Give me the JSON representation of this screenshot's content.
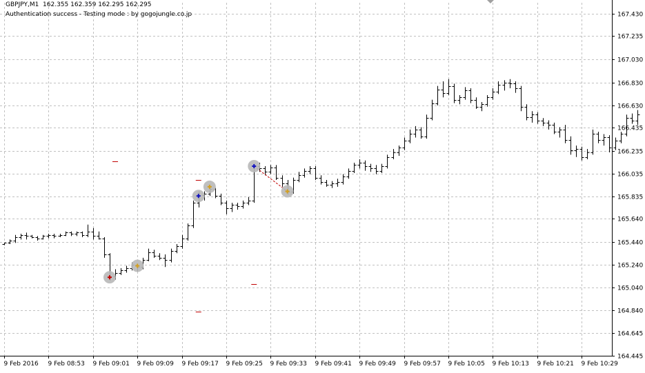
{
  "header": {
    "symbol": "GBPJPY,M1",
    "ohlc": "162.355 162.359 162.295 162.295",
    "status": "Authentication success - Testing mode : by gogojungle.co.jp"
  },
  "colors": {
    "background": "#ffffff",
    "grid": "#c0c0c0",
    "bar": "#000000",
    "marker_circle": "#b8b8b8",
    "buy_marker": "#1010c0",
    "sell_marker": "#c00000",
    "close_marker": "#d4a020",
    "trade_line": "#c00000",
    "level_dash": "#c00000"
  },
  "chart_data": {
    "type": "ohlc",
    "ylim": [
      164.445,
      167.535
    ],
    "y_ticks": [
      "167.430",
      "167.235",
      "167.030",
      "166.830",
      "166.630",
      "166.435",
      "166.235",
      "166.035",
      "165.835",
      "165.640",
      "165.440",
      "165.240",
      "165.040",
      "164.840",
      "164.645",
      "164.445"
    ],
    "x_ticks": [
      "9 Feb 2016",
      "9 Feb 08:53",
      "9 Feb 09:01",
      "9 Feb 09:09",
      "9 Feb 09:17",
      "9 Feb 09:25",
      "9 Feb 09:33",
      "9 Feb 09:41",
      "9 Feb 09:49",
      "9 Feb 09:57",
      "9 Feb 10:05",
      "9 Feb 10:13",
      "9 Feb 10:21",
      "9 Feb 10:29"
    ],
    "x_tick_index": [
      0,
      8,
      16,
      24,
      32,
      40,
      48,
      56,
      64,
      72,
      80,
      88,
      96,
      104
    ],
    "bars": [
      [
        165.42,
        165.43,
        165.41,
        165.43
      ],
      [
        165.43,
        165.46,
        165.42,
        165.45
      ],
      [
        165.45,
        165.5,
        165.43,
        165.48
      ],
      [
        165.48,
        165.51,
        165.46,
        165.5
      ],
      [
        165.5,
        165.52,
        165.46,
        165.49
      ],
      [
        165.49,
        165.5,
        165.47,
        165.48
      ],
      [
        165.48,
        165.49,
        165.45,
        165.47
      ],
      [
        165.47,
        165.5,
        165.46,
        165.49
      ],
      [
        165.49,
        165.51,
        165.47,
        165.5
      ],
      [
        165.5,
        165.51,
        165.47,
        165.49
      ],
      [
        165.49,
        165.51,
        165.48,
        165.5
      ],
      [
        165.5,
        165.53,
        165.49,
        165.52
      ],
      [
        165.52,
        165.53,
        165.49,
        165.51
      ],
      [
        165.51,
        165.53,
        165.49,
        165.52
      ],
      [
        165.52,
        165.53,
        165.48,
        165.5
      ],
      [
        165.5,
        165.59,
        165.48,
        165.53
      ],
      [
        165.53,
        165.56,
        165.46,
        165.49
      ],
      [
        165.49,
        165.53,
        165.46,
        165.47
      ],
      [
        165.47,
        165.48,
        165.3,
        165.33
      ],
      [
        165.33,
        165.34,
        165.1,
        165.14
      ],
      [
        165.14,
        165.2,
        165.11,
        165.17
      ],
      [
        165.17,
        165.21,
        165.15,
        165.19
      ],
      [
        165.19,
        165.23,
        165.17,
        165.21
      ],
      [
        165.21,
        165.26,
        165.19,
        165.24
      ],
      [
        165.24,
        165.25,
        165.18,
        165.22
      ],
      [
        165.22,
        165.3,
        165.2,
        165.28
      ],
      [
        165.28,
        165.38,
        165.27,
        165.35
      ],
      [
        165.35,
        165.37,
        165.3,
        165.32
      ],
      [
        165.32,
        165.34,
        165.28,
        165.3
      ],
      [
        165.3,
        165.33,
        165.22,
        165.28
      ],
      [
        165.28,
        165.38,
        165.26,
        165.36
      ],
      [
        165.36,
        165.42,
        165.34,
        165.4
      ],
      [
        165.4,
        165.5,
        165.38,
        165.47
      ],
      [
        165.47,
        165.6,
        165.45,
        165.58
      ],
      [
        165.58,
        165.8,
        165.56,
        165.78
      ],
      [
        165.78,
        165.88,
        165.74,
        165.85
      ],
      [
        165.85,
        165.88,
        165.8,
        165.86
      ],
      [
        165.86,
        165.93,
        165.84,
        165.9
      ],
      [
        165.9,
        165.91,
        165.82,
        165.84
      ],
      [
        165.84,
        165.86,
        165.76,
        165.78
      ],
      [
        165.78,
        165.8,
        165.68,
        165.73
      ],
      [
        165.73,
        165.78,
        165.7,
        165.76
      ],
      [
        165.76,
        165.78,
        165.72,
        165.75
      ],
      [
        165.75,
        165.8,
        165.73,
        165.78
      ],
      [
        165.78,
        165.83,
        165.76,
        165.8
      ],
      [
        165.8,
        166.12,
        165.78,
        166.1
      ],
      [
        166.1,
        166.13,
        166.05,
        166.08
      ],
      [
        166.08,
        166.1,
        166.02,
        166.05
      ],
      [
        166.05,
        166.11,
        166.03,
        166.09
      ],
      [
        166.09,
        166.11,
        165.98,
        166.0
      ],
      [
        166.0,
        166.02,
        165.92,
        165.95
      ],
      [
        165.95,
        165.98,
        165.85,
        165.88
      ],
      [
        165.88,
        166.0,
        165.86,
        165.98
      ],
      [
        165.98,
        166.05,
        165.96,
        166.02
      ],
      [
        166.02,
        166.08,
        166.0,
        166.06
      ],
      [
        166.06,
        166.1,
        166.03,
        166.08
      ],
      [
        166.08,
        166.1,
        165.98,
        166.0
      ],
      [
        166.0,
        166.02,
        165.94,
        165.96
      ],
      [
        165.96,
        165.98,
        165.92,
        165.94
      ],
      [
        165.94,
        165.97,
        165.91,
        165.95
      ],
      [
        165.95,
        165.99,
        165.92,
        165.96
      ],
      [
        165.96,
        166.03,
        165.94,
        166.01
      ],
      [
        166.01,
        166.08,
        165.99,
        166.06
      ],
      [
        166.06,
        166.13,
        166.04,
        166.11
      ],
      [
        166.11,
        166.16,
        166.08,
        166.13
      ],
      [
        166.13,
        166.15,
        166.06,
        166.1
      ],
      [
        166.1,
        166.12,
        166.05,
        166.08
      ],
      [
        166.08,
        166.11,
        166.03,
        166.06
      ],
      [
        166.06,
        166.12,
        166.04,
        166.1
      ],
      [
        166.1,
        166.2,
        166.08,
        166.18
      ],
      [
        166.18,
        166.25,
        166.16,
        166.22
      ],
      [
        166.22,
        166.28,
        166.19,
        166.26
      ],
      [
        166.26,
        166.35,
        166.24,
        166.32
      ],
      [
        166.32,
        166.42,
        166.3,
        166.38
      ],
      [
        166.38,
        166.45,
        166.35,
        166.42
      ],
      [
        166.42,
        166.44,
        166.34,
        166.36
      ],
      [
        166.36,
        166.55,
        166.34,
        166.52
      ],
      [
        166.52,
        166.68,
        166.5,
        166.65
      ],
      [
        166.65,
        166.8,
        166.63,
        166.77
      ],
      [
        166.77,
        166.84,
        166.7,
        166.74
      ],
      [
        166.74,
        166.86,
        166.72,
        166.8
      ],
      [
        166.8,
        166.82,
        166.65,
        166.68
      ],
      [
        166.68,
        166.72,
        166.64,
        166.7
      ],
      [
        166.7,
        166.79,
        166.68,
        166.76
      ],
      [
        166.76,
        166.78,
        166.65,
        166.68
      ],
      [
        166.68,
        166.7,
        166.6,
        166.62
      ],
      [
        166.62,
        166.66,
        166.58,
        166.64
      ],
      [
        166.64,
        166.72,
        166.62,
        166.7
      ],
      [
        166.7,
        166.78,
        166.68,
        166.75
      ],
      [
        166.75,
        166.84,
        166.73,
        166.81
      ],
      [
        166.81,
        166.85,
        166.76,
        166.83
      ],
      [
        166.83,
        166.86,
        166.78,
        166.82
      ],
      [
        166.82,
        166.84,
        166.74,
        166.78
      ],
      [
        166.78,
        166.8,
        166.58,
        166.62
      ],
      [
        166.62,
        166.64,
        166.5,
        166.53
      ],
      [
        166.53,
        166.58,
        166.48,
        166.55
      ],
      [
        166.55,
        166.57,
        166.47,
        166.5
      ],
      [
        166.5,
        166.52,
        166.45,
        166.48
      ],
      [
        166.48,
        166.5,
        166.42,
        166.46
      ],
      [
        166.46,
        166.48,
        166.38,
        166.4
      ],
      [
        166.4,
        166.44,
        166.35,
        166.42
      ],
      [
        166.42,
        166.46,
        166.3,
        166.33
      ],
      [
        166.33,
        166.36,
        166.2,
        166.24
      ],
      [
        166.24,
        166.28,
        166.18,
        166.25
      ],
      [
        166.25,
        166.27,
        166.15,
        166.18
      ],
      [
        166.18,
        166.25,
        166.16,
        166.22
      ],
      [
        166.22,
        166.42,
        166.2,
        166.38
      ],
      [
        166.38,
        166.4,
        166.3,
        166.33
      ],
      [
        166.33,
        166.38,
        166.28,
        166.35
      ],
      [
        166.35,
        166.37,
        166.22,
        166.26
      ],
      [
        166.26,
        166.35,
        166.24,
        166.32
      ],
      [
        166.32,
        166.4,
        166.3,
        166.38
      ],
      [
        166.38,
        166.55,
        166.36,
        166.52
      ],
      [
        166.52,
        166.56,
        166.47,
        166.5
      ],
      [
        166.5,
        166.59,
        166.46,
        166.55
      ]
    ],
    "trades": [
      {
        "index": 19,
        "price": 165.13,
        "kind": "sell"
      },
      {
        "index": 24,
        "price": 165.23,
        "kind": "close"
      },
      {
        "index": 35,
        "price": 165.84,
        "kind": "buy"
      },
      {
        "index": 37,
        "price": 165.92,
        "kind": "close"
      },
      {
        "index": 45,
        "price": 166.1,
        "kind": "buy"
      },
      {
        "index": 51,
        "price": 165.88,
        "kind": "close"
      }
    ],
    "trade_lines": [
      [
        45,
        166.1,
        51,
        165.88
      ]
    ],
    "level_marks": [
      {
        "index": 20,
        "price": 166.14
      },
      {
        "index": 35,
        "price": 165.98
      },
      {
        "index": 45,
        "price": 165.07
      },
      {
        "index": 35,
        "price": 164.83
      }
    ]
  }
}
